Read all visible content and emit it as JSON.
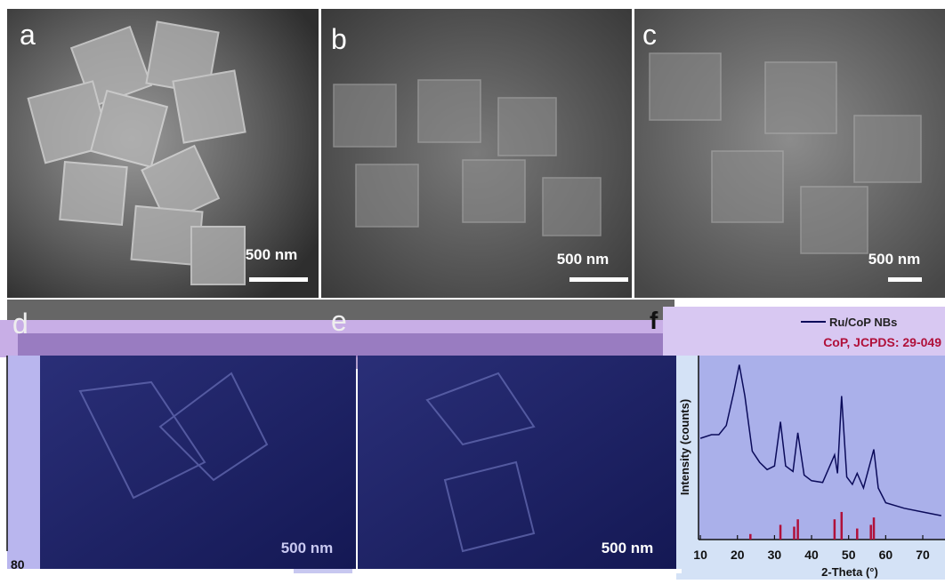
{
  "panels": [
    {
      "label": "a",
      "scale": "500 nm"
    },
    {
      "label": "b",
      "scale": "500 nm"
    },
    {
      "label": "c",
      "scale": "500 nm"
    },
    {
      "label": "d",
      "scale": "500 nm"
    },
    {
      "label": "e",
      "scale": "500 nm"
    }
  ],
  "fragment_tick": "80",
  "chart_data": {
    "type": "line",
    "label": "f",
    "xlabel": "2-Theta (°)",
    "ylabel": "Intensity (counts)",
    "xlim": [
      9.5,
      76
    ],
    "xticks": [
      10,
      20,
      30,
      40,
      50,
      60,
      70
    ],
    "ylim": [
      0,
      100
    ],
    "series": [
      {
        "name": "Ru/CoP NBs",
        "color": "#0b0b5a",
        "x": [
          10,
          13,
          15,
          17,
          19,
          20.5,
          22,
          24,
          26,
          28,
          30,
          31.6,
          33,
          35,
          36.3,
          38,
          40,
          43,
          46.2,
          47,
          48.1,
          49.5,
          51,
          52.3,
          54,
          56.8,
          58,
          60,
          65,
          70,
          75
        ],
        "values": [
          55,
          57,
          57,
          62,
          80,
          95,
          78,
          48,
          42,
          38,
          40,
          64,
          40,
          37,
          58,
          35,
          32,
          31,
          46,
          36,
          78,
          34,
          30,
          36,
          28,
          49,
          28,
          20,
          17,
          15,
          13
        ]
      },
      {
        "name": "CoP, JCPDS: 29-049",
        "color": "#b0103a",
        "type": "stick",
        "x": [
          23.5,
          31.6,
          35.3,
          36.3,
          46.2,
          48.1,
          52.3,
          56.0,
          56.8
        ],
        "values": [
          3,
          8,
          7,
          11,
          11,
          15,
          6,
          8,
          12
        ]
      }
    ]
  }
}
